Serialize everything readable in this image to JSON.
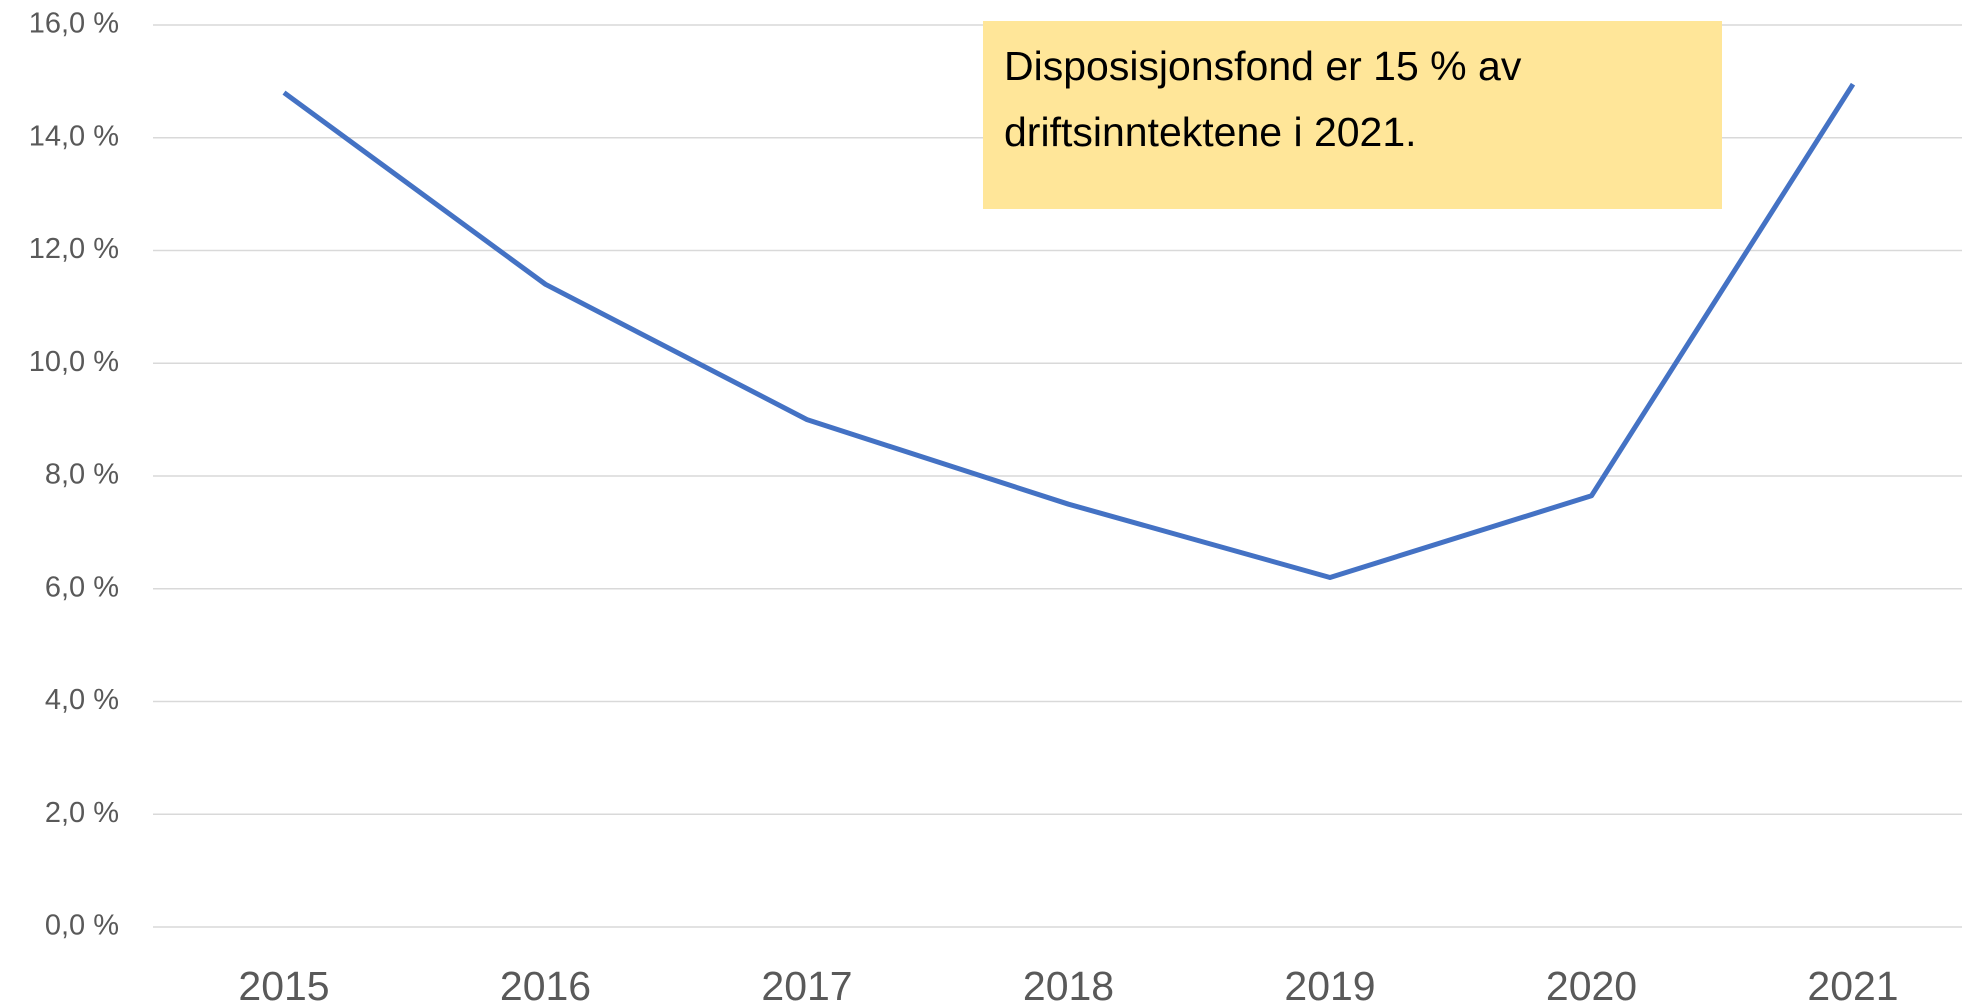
{
  "chart_data": {
    "type": "line",
    "categories": [
      "2015",
      "2016",
      "2017",
      "2018",
      "2019",
      "2020",
      "2021"
    ],
    "series": [
      {
        "name": "Disposisjonsfond",
        "color": "#4472c4",
        "values": [
          14.8,
          11.4,
          9.0,
          7.5,
          6.2,
          7.65,
          14.95
        ]
      }
    ],
    "ylim": [
      0,
      16
    ],
    "yticks": [
      {
        "value": 0,
        "label": "0,0 %"
      },
      {
        "value": 2,
        "label": "2,0 %"
      },
      {
        "value": 4,
        "label": "4,0 %"
      },
      {
        "value": 6,
        "label": "6,0 %"
      },
      {
        "value": 8,
        "label": "8,0 %"
      },
      {
        "value": 10,
        "label": "10,0 %"
      },
      {
        "value": 12,
        "label": "12,0 %"
      },
      {
        "value": 14,
        "label": "14,0 %"
      },
      {
        "value": 16,
        "label": "16,0 %"
      }
    ],
    "grid": true,
    "annotation": [
      "Disposisjonsfond er 15 % av",
      "driftsinntektene i 2021."
    ],
    "annotation_color": "#ffe699"
  }
}
